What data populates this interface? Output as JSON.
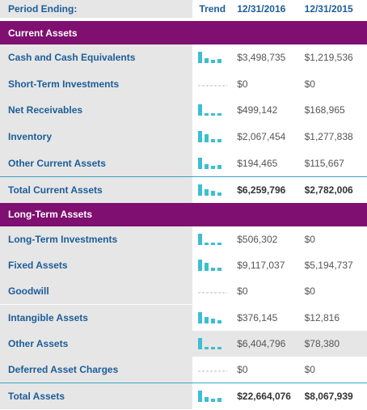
{
  "header": {
    "label": "Period Ending:",
    "trend": "Trend",
    "periods": [
      "12/31/2016",
      "12/31/2015"
    ]
  },
  "sections": [
    {
      "title": "Current Assets",
      "rows": [
        {
          "label": "Cash and Cash Equivalents",
          "values": [
            "$3,498,735",
            "$1,219,536"
          ]
        },
        {
          "label": "Short-Term Investments",
          "values": [
            "$0",
            "$0"
          ]
        },
        {
          "label": "Net Receivables",
          "values": [
            "$499,142",
            "$168,965"
          ]
        },
        {
          "label": "Inventory",
          "values": [
            "$2,067,454",
            "$1,277,838"
          ]
        },
        {
          "label": "Other Current Assets",
          "values": [
            "$194,465",
            "$115,667"
          ]
        }
      ],
      "total": {
        "label": "Total Current Assets",
        "values": [
          "$6,259,796",
          "$2,782,006"
        ]
      }
    },
    {
      "title": "Long-Term Assets",
      "rows": [
        {
          "label": "Long-Term Investments",
          "values": [
            "$506,302",
            "$0"
          ]
        },
        {
          "label": "Fixed Assets",
          "values": [
            "$9,117,037",
            "$5,194,737"
          ]
        },
        {
          "label": "Goodwill",
          "values": [
            "$0",
            "$0"
          ]
        },
        {
          "label": "Intangible Assets",
          "values": [
            "$376,145",
            "$12,816"
          ]
        },
        {
          "label": "Other Assets",
          "values": [
            "$6,404,796",
            "$78,380"
          ],
          "highlight": true
        },
        {
          "label": "Deferred Asset Charges",
          "values": [
            "$0",
            "$0"
          ]
        }
      ],
      "total": {
        "label": "Total Assets",
        "values": [
          "$22,664,076",
          "$8,067,939"
        ]
      }
    }
  ]
}
